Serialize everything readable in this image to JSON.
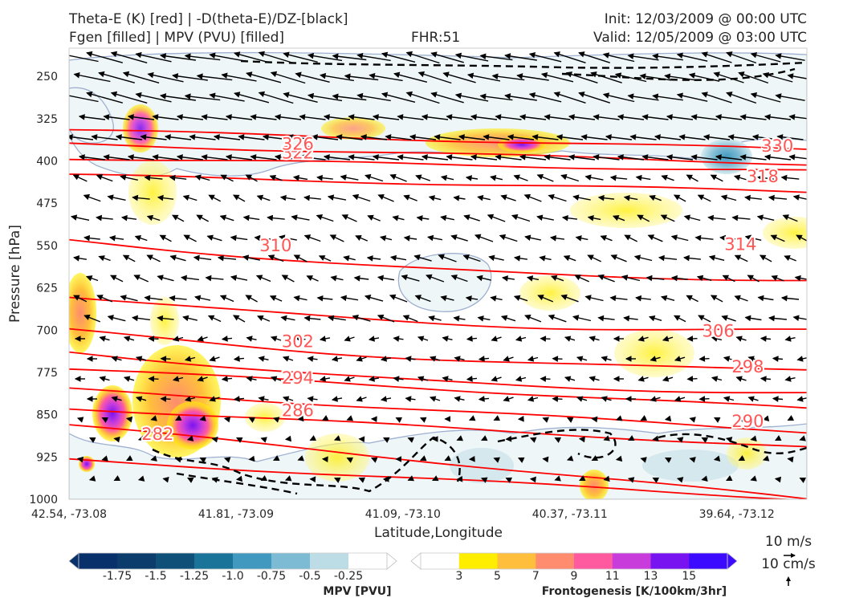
{
  "header": {
    "title_left_1": "Theta-E (K) [red] | -D(theta-E)/DZ-[black]",
    "title_left_2": "Fgen [filled] | MPV (PVU) [filled]",
    "fhr": "FHR:51",
    "init": "Init: 12/03/2009 @ 00:00 UTC",
    "valid": "Valid: 12/05/2009 @ 03:00 UTC"
  },
  "chart_data": {
    "type": "cross-section",
    "xlabel": "Latitude,Longitude",
    "ylabel": "Pressure [hPa]",
    "ylim": [
      1000,
      200
    ],
    "x_ticks": [
      "42.54, -73.08",
      "41.81, -73.09",
      "41.09, -73.10",
      "40.37, -73.11",
      "39.64, -73.12"
    ],
    "y_ticks": [
      250,
      325,
      400,
      475,
      550,
      625,
      700,
      775,
      850,
      925,
      1000
    ],
    "theta_e_contours": {
      "color": "#ff0000",
      "label_color": "#ff5555",
      "levels": [
        282,
        286,
        290,
        294,
        298,
        302,
        306,
        310,
        314,
        318,
        322,
        326,
        330
      ],
      "labels": [
        {
          "value": "282",
          "p": 885,
          "xf": 0.12
        },
        {
          "value": "286",
          "p": 843,
          "xf": 0.31
        },
        {
          "value": "294",
          "p": 785,
          "xf": 0.31
        },
        {
          "value": "302",
          "p": 720,
          "xf": 0.31
        },
        {
          "value": "310",
          "p": 550,
          "xf": 0.28
        },
        {
          "value": "322",
          "p": 386,
          "xf": 0.31
        },
        {
          "value": "326",
          "p": 370,
          "xf": 0.31
        },
        {
          "value": "290",
          "p": 862,
          "xf": 0.92
        },
        {
          "value": "298",
          "p": 765,
          "xf": 0.92
        },
        {
          "value": "306",
          "p": 702,
          "xf": 0.88
        },
        {
          "value": "314",
          "p": 548,
          "xf": 0.91
        },
        {
          "value": "318",
          "p": 428,
          "xf": 0.94
        },
        {
          "value": "330",
          "p": 374,
          "xf": 0.96
        }
      ]
    },
    "mpv_colorbar": {
      "label": "MPV [PVU]",
      "ticks": [
        "-1.75",
        "-1.5",
        "-1.25",
        "-1.0",
        "-0.75",
        "-0.5",
        "-0.25"
      ],
      "colors": [
        "#08306b",
        "#0b3c6b",
        "#0f5078",
        "#1a7399",
        "#4299bf",
        "#7dbad3",
        "#bcdce6",
        "#ffffff"
      ]
    },
    "fgen_colorbar": {
      "label": "Frontogenesis [K/100km/3hr]",
      "ticks": [
        "3",
        "5",
        "7",
        "9",
        "11",
        "13",
        "15"
      ],
      "colors": [
        "#ffffff",
        "#ffee00",
        "#ffbf3c",
        "#ff8c6e",
        "#ff5aa0",
        "#c83cdc",
        "#7814f0",
        "#3c0aff"
      ]
    },
    "vector_keys": {
      "horizontal": "10 m/s",
      "vertical": "10 cm/s"
    }
  }
}
